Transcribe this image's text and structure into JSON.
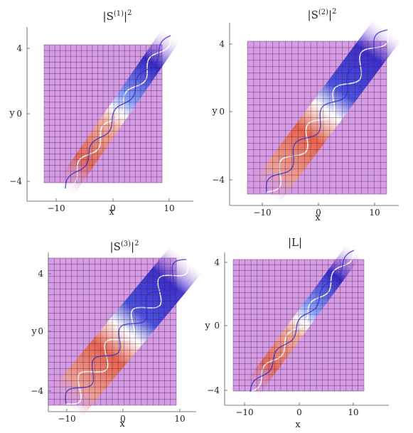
{
  "chart_data": [
    {
      "type": "heatmap",
      "title_base": "|S",
      "title_sup": "(1)",
      "title_tail": "|",
      "title_power": "2",
      "xlabel": "x",
      "ylabel": "y",
      "xticks": [
        "−10",
        "0",
        "10"
      ],
      "yticks": [
        "4",
        "0",
        "−4"
      ],
      "xlim": [
        -15,
        15
      ],
      "ylim": [
        -5,
        5
      ],
      "surface_color": "#d79be6",
      "band_colors": [
        "#2d22c8",
        "#e8634e",
        "#ffffff"
      ]
    },
    {
      "type": "heatmap",
      "title_base": "|S",
      "title_sup": "(2)",
      "title_tail": "|",
      "title_power": "2",
      "xlabel": "x",
      "ylabel": "y",
      "xticks": [
        "−10",
        "0",
        "10"
      ],
      "yticks": [
        "4",
        "0",
        "−4"
      ],
      "xlim": [
        -15,
        15
      ],
      "ylim": [
        -5,
        5
      ],
      "surface_color": "#d79be6",
      "band_colors": [
        "#2d22c8",
        "#e8634e",
        "#ffffff"
      ]
    },
    {
      "type": "heatmap",
      "title_base": "|S",
      "title_sup": "(3)",
      "title_tail": "|",
      "title_power": "2",
      "xlabel": "x",
      "ylabel": "y",
      "xticks": [
        "−10",
        "0",
        "10"
      ],
      "yticks": [
        "4",
        "0",
        "−4"
      ],
      "xlim": [
        -15,
        15
      ],
      "ylim": [
        -5,
        5
      ],
      "surface_color": "#d79be6",
      "band_colors": [
        "#2d22c8",
        "#e8634e",
        "#ffffff"
      ]
    },
    {
      "type": "heatmap",
      "title_base": "|L|",
      "title_sup": "",
      "title_tail": "",
      "title_power": "",
      "xlabel": "x",
      "ylabel": "y",
      "xticks": [
        "−10",
        "0",
        "10"
      ],
      "yticks": [
        "4",
        "0",
        "−4"
      ],
      "xlim": [
        -15,
        15
      ],
      "ylim": [
        -5,
        5
      ],
      "surface_color": "#d79be6",
      "band_colors": [
        "#2d22c8",
        "#e8634e",
        "#ffffff"
      ]
    }
  ]
}
